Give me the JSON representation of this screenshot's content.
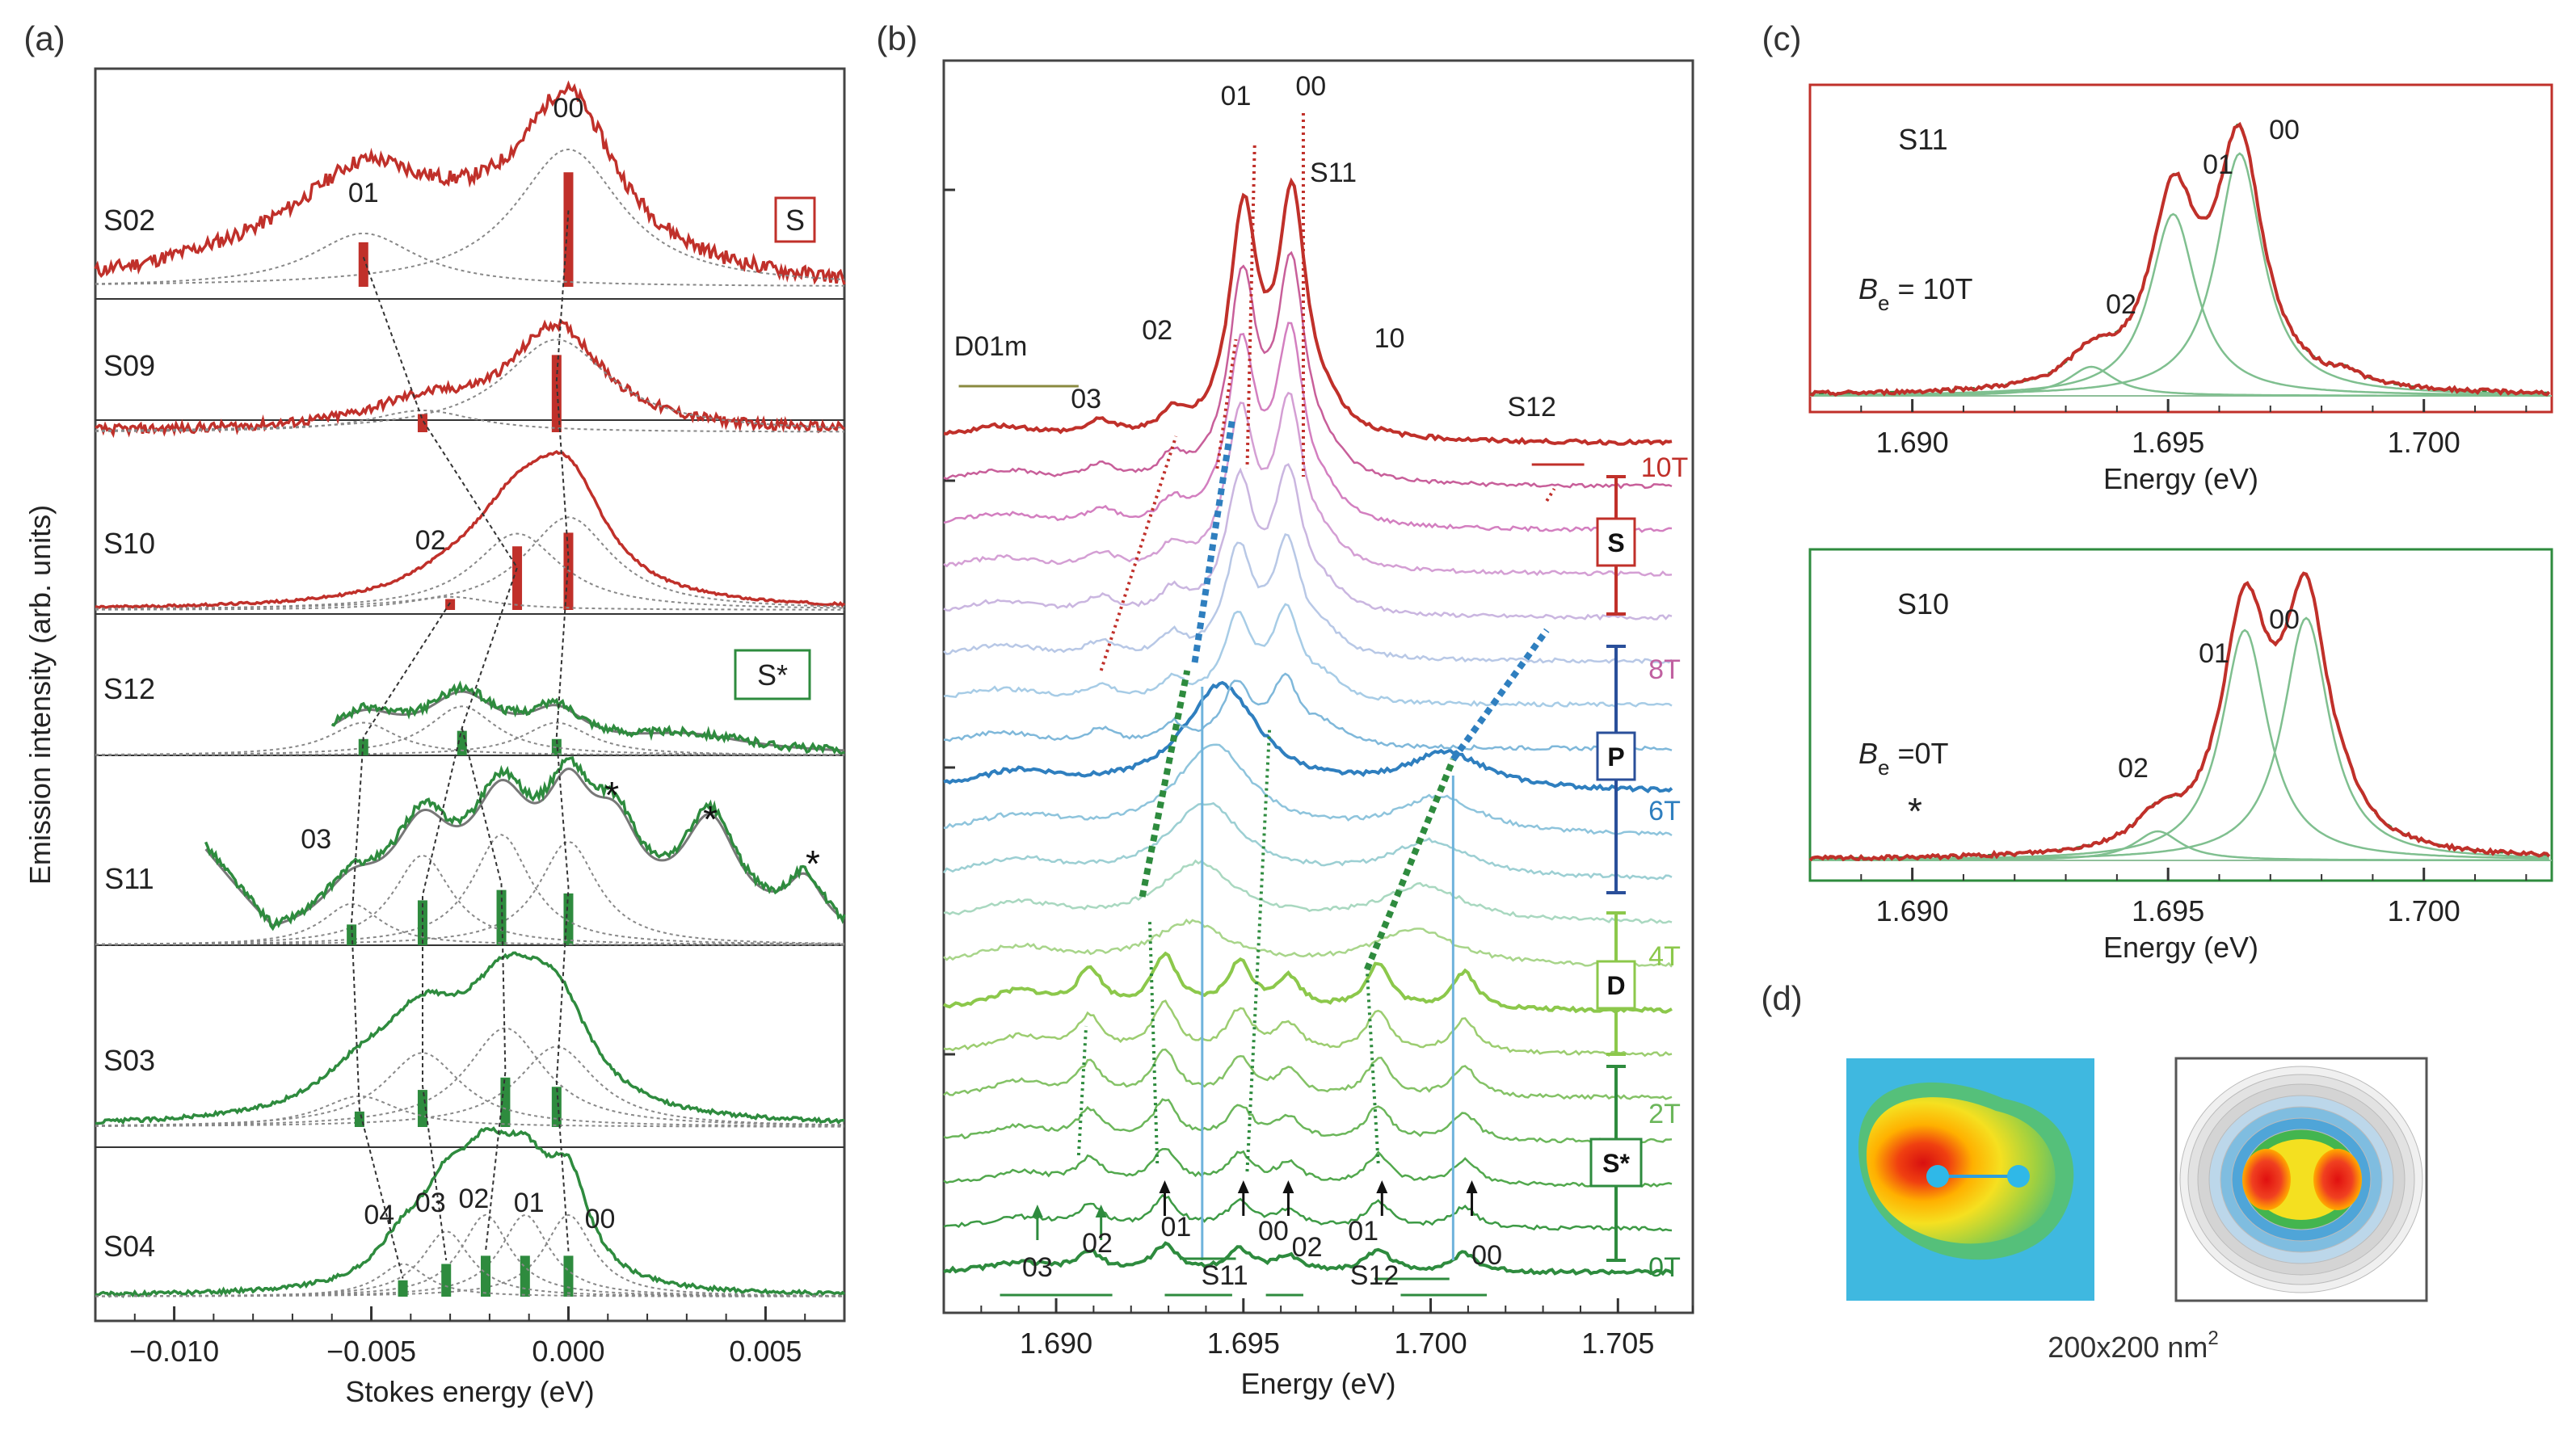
{
  "panel_labels": [
    "(a)",
    "(b)",
    "(c)",
    "(d)"
  ],
  "colors": {
    "red": "#c0302a",
    "green": "#2e8b3e",
    "blue": "#2f7fbf",
    "purple": "#c060a0",
    "lightgreen": "#8cc84b"
  },
  "chart_data": [
    {
      "panel": "(a)",
      "type": "line",
      "xlabel": "Stokes energy (eV)",
      "ylabel": "Emission intensity (arb. units)",
      "xlim": [
        -0.012,
        0.007
      ],
      "xticks": [
        -0.01,
        -0.005,
        0.0,
        0.005
      ],
      "xtick_labels": [
        "−0.010",
        "−0.005",
        "0.000",
        "0.005"
      ],
      "legend_boxes": [
        "S",
        "S*"
      ],
      "annotations": [
        "00",
        "01",
        "02",
        "03",
        "04",
        "*",
        "*",
        "*"
      ],
      "series": [
        {
          "name": "S02",
          "color": "#c0302a",
          "peaks": [
            {
              "label": "00",
              "x": 0.0,
              "h": 0.9
            },
            {
              "label": "01",
              "x": -0.0052,
              "h": 0.35
            }
          ]
        },
        {
          "name": "S09",
          "color": "#c0302a",
          "peaks": [
            {
              "label": "00",
              "x": -0.0003,
              "h": 0.85
            },
            {
              "label": "01",
              "x": -0.0037,
              "h": 0.2
            }
          ]
        },
        {
          "name": "S10",
          "color": "#c0302a",
          "peaks": [
            {
              "label": "00",
              "x": 0.0,
              "h": 0.85
            },
            {
              "label": "01",
              "x": -0.0013,
              "h": 0.7
            },
            {
              "label": "02",
              "x": -0.003,
              "h": 0.12
            }
          ]
        },
        {
          "name": "S12",
          "color": "#2e8b3e",
          "peaks": [
            {
              "label": "00",
              "x": -0.0003,
              "h": 0.3
            },
            {
              "label": "01",
              "x": -0.0027,
              "h": 0.45
            },
            {
              "label": "02",
              "x": -0.0052,
              "h": 0.3
            }
          ]
        },
        {
          "name": "S11",
          "color": "#2e8b3e",
          "peaks": [
            {
              "label": "00",
              "x": 0.0,
              "h": 0.75
            },
            {
              "label": "01",
              "x": -0.0017,
              "h": 0.8
            },
            {
              "label": "02",
              "x": -0.0037,
              "h": 0.65
            },
            {
              "label": "03",
              "x": -0.0055,
              "h": 0.3
            }
          ]
        },
        {
          "name": "S03",
          "color": "#2e8b3e",
          "peaks": [
            {
              "label": "00",
              "x": -0.0003,
              "h": 0.65
            },
            {
              "label": "01",
              "x": -0.0016,
              "h": 0.8
            },
            {
              "label": "02",
              "x": -0.0037,
              "h": 0.6
            },
            {
              "label": "03",
              "x": -0.0053,
              "h": 0.25
            }
          ]
        },
        {
          "name": "S04",
          "color": "#2e8b3e",
          "peaks": [
            {
              "label": "00",
              "x": 0.0,
              "h": 0.75
            },
            {
              "label": "01",
              "x": -0.0011,
              "h": 0.75
            },
            {
              "label": "02",
              "x": -0.0021,
              "h": 0.75
            },
            {
              "label": "03",
              "x": -0.0031,
              "h": 0.6
            },
            {
              "label": "04",
              "x": -0.0042,
              "h": 0.3
            }
          ]
        }
      ]
    },
    {
      "panel": "(b)",
      "type": "line",
      "xlabel": "Energy (eV)",
      "xlim": [
        1.687,
        1.707
      ],
      "xticks": [
        1.69,
        1.695,
        1.7,
        1.705
      ],
      "xtick_labels": [
        "1.690",
        "1.695",
        "1.700",
        "1.705"
      ],
      "field_labels": [
        "10T",
        "8T",
        "6T",
        "4T",
        "2T",
        "0T"
      ],
      "state_boxes": [
        "S",
        "P",
        "D",
        "S*"
      ],
      "annotations": [
        "D01m",
        "03",
        "02",
        "01",
        "00",
        "S11",
        "10",
        "S12",
        "03",
        "02",
        "01",
        "00",
        "S11",
        "02",
        "01",
        "S12",
        "00"
      ],
      "traces": 20,
      "field_range_T": [
        0,
        10
      ]
    },
    {
      "panel": "(c) top",
      "type": "line",
      "title": "S11",
      "field": "B",
      "field_sub": "e",
      "field_value": " = 10T",
      "xlabel": "Energy (eV)",
      "xlim": [
        1.688,
        1.7025
      ],
      "xtick_labels": [
        "1.690",
        "1.695",
        "1.700"
      ],
      "annotations": [
        "01",
        "00",
        "02"
      ],
      "peaks": [
        {
          "label": "00",
          "x": 1.6964,
          "h": 1.0
        },
        {
          "label": "01",
          "x": 1.6951,
          "h": 0.75
        },
        {
          "label": "02",
          "x": 1.6935,
          "h": 0.12
        }
      ]
    },
    {
      "panel": "(c) bottom",
      "type": "line",
      "title": "S10",
      "field": "B",
      "field_sub": "e",
      "field_value": " =0T",
      "xlabel": "Energy (eV)",
      "xlim": [
        1.688,
        1.7025
      ],
      "xtick_labels": [
        "1.690",
        "1.695",
        "1.700"
      ],
      "annotations": [
        "01",
        "00",
        "02",
        "*"
      ],
      "peaks": [
        {
          "label": "00",
          "x": 1.6977,
          "h": 1.0
        },
        {
          "label": "01",
          "x": 1.6965,
          "h": 0.95
        },
        {
          "label": "02",
          "x": 1.6948,
          "h": 0.12
        }
      ]
    }
  ],
  "panel_d": {
    "caption": "200x200 nm",
    "caption_sup": "2"
  }
}
